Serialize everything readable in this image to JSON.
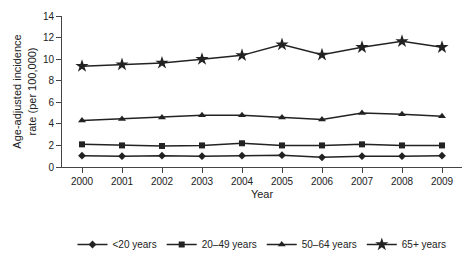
{
  "chart_data": {
    "type": "line",
    "x": [
      2000,
      2001,
      2002,
      2003,
      2004,
      2005,
      2006,
      2007,
      2008,
      2009
    ],
    "xlabel": "Year",
    "ylabel": "Age-adjusted incidence\nrate (per 100,000)",
    "series": [
      {
        "name": "<20 years",
        "color": "#222222",
        "marker": "diamond",
        "values": [
          1.05,
          1.0,
          1.05,
          1.0,
          1.05,
          1.1,
          0.9,
          1.0,
          1.0,
          1.05
        ]
      },
      {
        "name": "20–49 years",
        "color": "#222222",
        "marker": "square",
        "values": [
          2.1,
          2.0,
          1.95,
          2.0,
          2.2,
          2.0,
          2.0,
          2.1,
          2.0,
          2.0
        ]
      },
      {
        "name": "50–64 years",
        "color": "#222222",
        "marker": "triangle-up",
        "values": [
          4.3,
          4.45,
          4.6,
          4.8,
          4.8,
          4.6,
          4.4,
          5.0,
          4.9,
          4.7
        ]
      },
      {
        "name": "65+ years",
        "color": "#222222",
        "marker": "star",
        "values": [
          9.35,
          9.5,
          9.65,
          10.0,
          10.35,
          11.35,
          10.4,
          11.1,
          11.65,
          11.1
        ]
      }
    ],
    "xlim": [
      1999.5,
      2009.5
    ],
    "xticks": [
      2000,
      2001,
      2002,
      2003,
      2004,
      2005,
      2006,
      2007,
      2008,
      2009
    ],
    "ylim": [
      0,
      14
    ],
    "yticks": [
      0,
      2,
      4,
      6,
      8,
      10,
      12,
      14
    ],
    "grid": false,
    "legend": "bottom"
  }
}
